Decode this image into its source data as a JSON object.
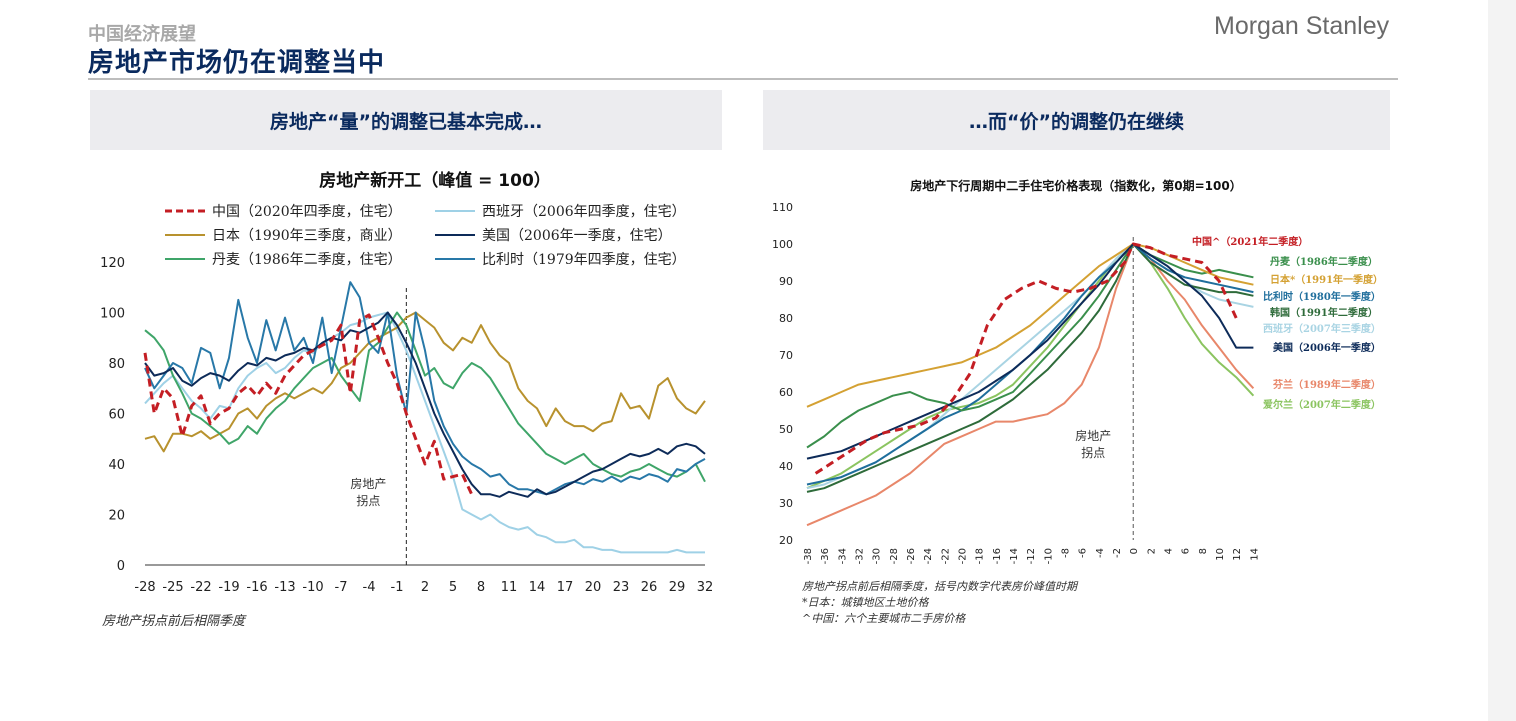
{
  "header": {
    "supertitle": "中国经济展望",
    "title": "房地产市场仍在调整当中",
    "brand": "Morgan Stanley"
  },
  "banners": {
    "left": "房地产“量”的调整已基本完成…",
    "right": "…而“价”的调整仍在继续"
  },
  "footnotes": {
    "left": "房地产拐点前后相隔季度",
    "right_1": "房地产拐点前后相隔季度，括号内数字代表房价峰值时期",
    "right_2": "*日本：城镇地区土地价格",
    "right_3": "^中国：六个主要城市二手房价格"
  },
  "chart_data": [
    {
      "type": "line",
      "title": "房地产新开工（峰值 = 100）",
      "annotation": "房地产\n拐点",
      "x_ticks": [
        -28,
        -25,
        -22,
        -19,
        -16,
        -13,
        -10,
        -7,
        -4,
        -1,
        2,
        5,
        8,
        11,
        14,
        17,
        20,
        23,
        26,
        29,
        32
      ],
      "xlim": [
        -28,
        32
      ],
      "ylim": [
        0,
        120
      ],
      "y_ticks": [
        0,
        20,
        40,
        60,
        80,
        100,
        120
      ],
      "grid": false,
      "legend_position": "top",
      "series": [
        {
          "name": "中国（2020年四季度，住宅）",
          "color": "#c41e24",
          "style": "dashed",
          "x_start": -28,
          "values": [
            84,
            60,
            70,
            66,
            51,
            63,
            67,
            56,
            60,
            62,
            68,
            71,
            67,
            72,
            68,
            75,
            79,
            83,
            85,
            87,
            89,
            95,
            68,
            97,
            99,
            90,
            80,
            72,
            60,
            50,
            40,
            49,
            34,
            35,
            36,
            28
          ]
        },
        {
          "name": "西班牙（2006年四季度，住宅）",
          "color": "#9fd1e6",
          "style": "solid",
          "x_start": -28,
          "values": [
            64,
            68,
            72,
            75,
            70,
            65,
            62,
            58,
            63,
            62,
            70,
            75,
            78,
            80,
            76,
            78,
            82,
            85,
            84,
            88,
            90,
            92,
            95,
            96,
            98,
            99,
            100,
            93,
            85,
            75,
            65,
            55,
            45,
            35,
            22,
            20,
            18,
            20,
            17,
            15,
            14,
            15,
            12,
            11,
            9,
            9,
            10,
            7,
            7,
            6,
            6,
            5,
            5,
            5,
            5,
            5,
            5,
            6,
            5,
            5,
            5
          ]
        },
        {
          "name": "日本（1990年三季度，商业）",
          "color": "#b8922e",
          "style": "solid",
          "x_start": -28,
          "values": [
            50,
            51,
            45,
            52,
            52,
            51,
            53,
            50,
            52,
            54,
            60,
            62,
            58,
            63,
            66,
            68,
            66,
            68,
            70,
            68,
            72,
            78,
            80,
            84,
            88,
            90,
            92,
            94,
            98,
            100,
            97,
            94,
            88,
            85,
            90,
            88,
            95,
            88,
            83,
            80,
            70,
            65,
            62,
            55,
            62,
            57,
            55,
            55,
            53,
            56,
            57,
            68,
            62,
            63,
            58,
            71,
            74,
            66,
            62,
            60,
            65
          ]
        },
        {
          "name": "美国（2006年一季度，住宅）",
          "color": "#0d2b59",
          "style": "solid",
          "x_start": -28,
          "values": [
            80,
            75,
            76,
            78,
            73,
            71,
            74,
            76,
            75,
            73,
            77,
            80,
            79,
            82,
            81,
            83,
            84,
            86,
            85,
            88,
            90,
            89,
            93,
            92,
            94,
            96,
            100,
            95,
            88,
            80,
            70,
            60,
            52,
            45,
            38,
            32,
            28,
            28,
            27,
            29,
            28,
            27,
            30,
            28,
            29,
            31,
            33,
            35,
            37,
            38,
            40,
            42,
            44,
            43,
            44,
            46,
            44,
            47,
            48,
            47,
            44
          ]
        },
        {
          "name": "丹麦（1986年二季度，住宅）",
          "color": "#3fa569",
          "style": "solid",
          "x_start": -28,
          "values": [
            93,
            90,
            85,
            75,
            68,
            60,
            58,
            55,
            52,
            48,
            50,
            55,
            52,
            58,
            62,
            65,
            70,
            74,
            78,
            80,
            82,
            75,
            70,
            65,
            85,
            88,
            94,
            100,
            95,
            85,
            75,
            78,
            72,
            70,
            76,
            80,
            78,
            74,
            68,
            62,
            56,
            52,
            48,
            44,
            42,
            40,
            42,
            44,
            40,
            38,
            36,
            35,
            37,
            38,
            40,
            38,
            36,
            35,
            37,
            40,
            33
          ]
        },
        {
          "name": "比利时（1979年四季度，住宅）",
          "color": "#2878a8",
          "style": "solid",
          "x_start": -28,
          "values": [
            78,
            70,
            75,
            80,
            78,
            72,
            86,
            84,
            70,
            82,
            105,
            90,
            80,
            97,
            85,
            98,
            85,
            90,
            80,
            98,
            76,
            94,
            112,
            106,
            88,
            84,
            100,
            75,
            60,
            100,
            85,
            65,
            55,
            48,
            43,
            40,
            38,
            35,
            36,
            32,
            30,
            30,
            29,
            28,
            30,
            32,
            33,
            32,
            34,
            33,
            35,
            33,
            35,
            34,
            36,
            35,
            33,
            38,
            37,
            40,
            42
          ]
        }
      ]
    },
    {
      "type": "line",
      "title": "房地产下行周期中二手住宅价格表现（指数化，第0期=100）",
      "annotation": "房地产\n拐点",
      "x_ticks": [
        -38,
        -36,
        -34,
        -32,
        -30,
        -28,
        -26,
        -24,
        -22,
        -20,
        -18,
        -16,
        -14,
        -12,
        -10,
        -8,
        -6,
        -4,
        -2,
        0,
        2,
        4,
        6,
        8,
        10,
        12,
        14
      ],
      "xlim": [
        -38,
        15
      ],
      "ylim": [
        20,
        110
      ],
      "y_ticks": [
        20,
        30,
        40,
        50,
        60,
        70,
        80,
        90,
        100,
        110
      ],
      "grid": false,
      "legend_position": "right",
      "series": [
        {
          "name": "中国^（2021年二季度）",
          "color": "#c41e24",
          "style": "dashed",
          "x": [
            -37,
            -35,
            -33,
            -31,
            -29,
            -27,
            -25,
            -23,
            -21,
            -19,
            -17,
            -15,
            -13,
            -11,
            -9,
            -7,
            -5,
            -3,
            -1,
            0,
            2,
            4,
            6,
            8,
            10,
            12
          ],
          "values": [
            38,
            41,
            44,
            47,
            49,
            50,
            51,
            53,
            58,
            65,
            78,
            85,
            88,
            90,
            88,
            87,
            88,
            90,
            95,
            100,
            99,
            97,
            96,
            95,
            90,
            80
          ]
        },
        {
          "name": "丹麦（1986年二季度）",
          "color": "#3a8f4c",
          "style": "solid",
          "x": [
            -38,
            -36,
            -34,
            -32,
            -30,
            -28,
            -26,
            -24,
            -22,
            -20,
            -18,
            -16,
            -14,
            -12,
            -10,
            -8,
            -6,
            -4,
            -2,
            0,
            2,
            4,
            6,
            8,
            10,
            12,
            14
          ],
          "values": [
            45,
            48,
            52,
            55,
            57,
            59,
            60,
            58,
            57,
            55,
            56,
            58,
            60,
            65,
            70,
            75,
            80,
            86,
            93,
            100,
            97,
            95,
            93,
            92,
            93,
            92,
            91
          ]
        },
        {
          "name": "日本*（1991年一季度）",
          "color": "#d4a133",
          "style": "solid",
          "x": [
            -38,
            -36,
            -34,
            -32,
            -30,
            -28,
            -26,
            -24,
            -22,
            -20,
            -18,
            -16,
            -14,
            -12,
            -10,
            -8,
            -6,
            -4,
            -2,
            0,
            2,
            4,
            6,
            8,
            10,
            12,
            14
          ],
          "values": [
            56,
            58,
            60,
            62,
            63,
            64,
            65,
            66,
            67,
            68,
            70,
            72,
            75,
            78,
            82,
            86,
            90,
            94,
            97,
            100,
            99,
            97,
            95,
            93,
            91,
            90,
            89
          ]
        },
        {
          "name": "比利时（1980年一季度）",
          "color": "#1f6e9c",
          "style": "solid",
          "x": [
            -38,
            -36,
            -34,
            -32,
            -30,
            -28,
            -26,
            -24,
            -22,
            -20,
            -18,
            -16,
            -14,
            -12,
            -10,
            -8,
            -6,
            -4,
            -2,
            0,
            2,
            4,
            6,
            8,
            10,
            12,
            14
          ],
          "values": [
            35,
            36,
            37,
            39,
            41,
            44,
            47,
            50,
            53,
            55,
            58,
            62,
            66,
            70,
            75,
            80,
            86,
            91,
            95,
            100,
            96,
            93,
            91,
            90,
            89,
            88,
            87
          ]
        },
        {
          "name": "韩国（1991年二季度）",
          "color": "#2e6b3a",
          "style": "solid",
          "x": [
            -38,
            -36,
            -34,
            -32,
            -30,
            -28,
            -26,
            -24,
            -22,
            -20,
            -18,
            -16,
            -14,
            -12,
            -10,
            -8,
            -6,
            -4,
            -2,
            0,
            2,
            4,
            6,
            8,
            10,
            12,
            14
          ],
          "values": [
            33,
            34,
            36,
            38,
            40,
            42,
            44,
            46,
            48,
            50,
            52,
            55,
            58,
            62,
            66,
            71,
            76,
            82,
            90,
            100,
            95,
            92,
            89,
            88,
            87,
            87,
            86
          ]
        },
        {
          "name": "西班牙（2007年三季度）",
          "color": "#a9d4e3",
          "style": "solid",
          "x": [
            -38,
            -36,
            -34,
            -32,
            -30,
            -28,
            -26,
            -24,
            -22,
            -20,
            -18,
            -16,
            -14,
            -12,
            -10,
            -8,
            -6,
            -4,
            -2,
            0,
            2,
            4,
            6,
            8,
            10,
            12,
            14
          ],
          "values": [
            34,
            35,
            37,
            39,
            41,
            44,
            47,
            50,
            54,
            58,
            62,
            66,
            70,
            74,
            78,
            82,
            86,
            91,
            96,
            100,
            97,
            94,
            90,
            87,
            85,
            84,
            83
          ]
        },
        {
          "name": "美国（2006年一季度）",
          "color": "#0d2b59",
          "style": "solid",
          "x": [
            -38,
            -36,
            -34,
            -32,
            -30,
            -28,
            -26,
            -24,
            -22,
            -20,
            -18,
            -16,
            -14,
            -12,
            -10,
            -8,
            -6,
            -4,
            -2,
            0,
            2,
            4,
            6,
            8,
            10,
            12,
            14
          ],
          "values": [
            42,
            43,
            44,
            46,
            48,
            50,
            52,
            54,
            56,
            58,
            60,
            63,
            66,
            70,
            74,
            79,
            84,
            89,
            95,
            100,
            97,
            94,
            90,
            86,
            80,
            72,
            72
          ]
        },
        {
          "name": "芬兰（1989年二季度）",
          "color": "#e8876a",
          "style": "solid",
          "x": [
            -38,
            -36,
            -34,
            -32,
            -30,
            -28,
            -26,
            -24,
            -22,
            -20,
            -18,
            -16,
            -14,
            -12,
            -10,
            -8,
            -6,
            -4,
            -2,
            0,
            2,
            4,
            6,
            8,
            10,
            12,
            14
          ],
          "values": [
            24,
            26,
            28,
            30,
            32,
            35,
            38,
            42,
            46,
            48,
            50,
            52,
            52,
            53,
            54,
            57,
            62,
            72,
            88,
            100,
            96,
            90,
            85,
            78,
            72,
            66,
            61
          ]
        },
        {
          "name": "爱尔兰（2007年二季度）",
          "color": "#8bc460",
          "style": "solid",
          "x": [
            -38,
            -36,
            -34,
            -32,
            -30,
            -28,
            -26,
            -24,
            -22,
            -20,
            -18,
            -16,
            -14,
            -12,
            -10,
            -8,
            -6,
            -4,
            -2,
            0,
            2,
            4,
            6,
            8,
            10,
            12,
            14
          ],
          "values": [
            34,
            36,
            38,
            41,
            44,
            47,
            50,
            53,
            55,
            56,
            57,
            59,
            62,
            67,
            72,
            78,
            84,
            90,
            96,
            100,
            95,
            88,
            80,
            73,
            68,
            64,
            59
          ]
        }
      ]
    }
  ]
}
